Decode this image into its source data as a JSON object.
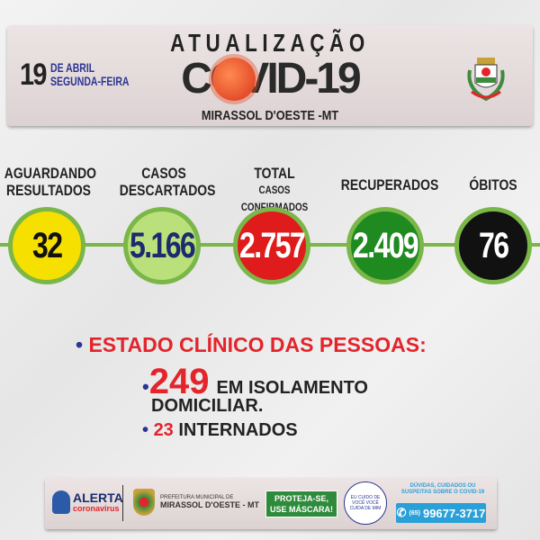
{
  "header": {
    "day": "19",
    "month": "DE ABRIL",
    "weekday": "SEGUNDA-FEIRA",
    "title": "ATUALIZAÇÃO",
    "covid": "COVID-19",
    "city": "MIRASSOL D'OESTE -MT"
  },
  "stats": [
    {
      "label1": "AGUARDANDO",
      "label2": "RESULTADOS",
      "value": "32",
      "color": "#f5e000",
      "text_color": "#111111"
    },
    {
      "label1": "CASOS",
      "label2": "DESCARTADOS",
      "value": "5.166",
      "color": "#b9e07a",
      "text_color": "#1c2a6e"
    },
    {
      "label1": "TOTAL",
      "label2": "CASOS CONFIRMADOS",
      "value": "2.757",
      "color": "#e01b1b",
      "text_color": "#ffffff"
    },
    {
      "label1": "RECUPERADOS",
      "label2": "",
      "value": "2.409",
      "color": "#1f8a1f",
      "text_color": "#ffffff"
    },
    {
      "label1": "ÓBITOS",
      "label2": "",
      "value": "76",
      "color": "#111111",
      "text_color": "#ffffff"
    }
  ],
  "clinical": {
    "heading": "ESTADO CLÍNICO DAS PESSOAS:",
    "isolation_value": "249",
    "isolation_label1": "EM ISOLAMENTO",
    "isolation_label2": "DOMICILIAR.",
    "hospital_value": "23",
    "hospital_label": "INTERNADOS"
  },
  "footer": {
    "alerta": "ALERTA",
    "coronavirus": "coronavirus",
    "pref_line1": "PREFEITURA MUNICIPAL DE",
    "pref_line2": "MIRASSOL D'OESTE - MT",
    "proteja1": "PROTEJA-SE,",
    "proteja2": "USE MÁSCARA!",
    "badge": "EU CUIDO DE VOCÊ VOCÊ CUIDA DE MIM",
    "duvidas": "DÚVIDAS, CUIDADOS OU SUSPEITAS SOBRE O COVID-19",
    "ddd": "(65)",
    "phone": "99677-3717"
  }
}
